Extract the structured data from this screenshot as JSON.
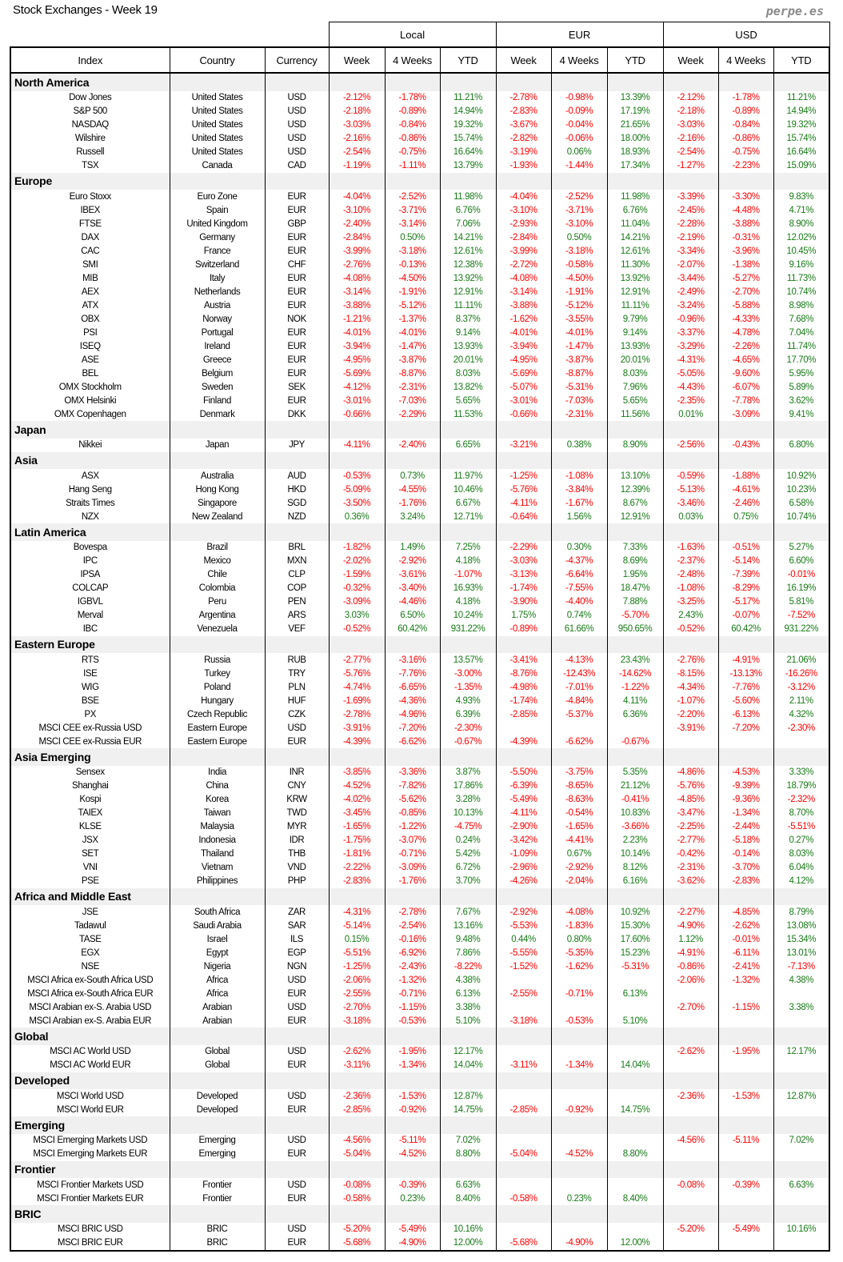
{
  "title": "Stock Exchanges - Week 19",
  "brand": "perpe.es",
  "colors": {
    "negative": "#ff0000",
    "positive": "#1a7a1a",
    "section_bg": "#f0f0f0"
  },
  "groups": [
    "Local",
    "EUR",
    "USD"
  ],
  "columns": [
    "Index",
    "Country",
    "Currency",
    "Week",
    "4 Weeks",
    "YTD",
    "Week",
    "4 Weeks",
    "YTD",
    "Week",
    "4 Weeks",
    "YTD"
  ],
  "sections": [
    {
      "name": "North America",
      "rows": [
        [
          "Dow Jones",
          "United States",
          "USD",
          "-2.12%",
          "-1.78%",
          "11.21%",
          "-2.78%",
          "-0.98%",
          "13.39%",
          "-2.12%",
          "-1.78%",
          "11.21%"
        ],
        [
          "S&P 500",
          "United States",
          "USD",
          "-2.18%",
          "-0.89%",
          "14.94%",
          "-2.83%",
          "-0.09%",
          "17.19%",
          "-2.18%",
          "-0.89%",
          "14.94%"
        ],
        [
          "NASDAQ",
          "United States",
          "USD",
          "-3.03%",
          "-0.84%",
          "19.32%",
          "-3.67%",
          "-0.04%",
          "21.65%",
          "-3.03%",
          "-0.84%",
          "19.32%"
        ],
        [
          "Wilshire",
          "United States",
          "USD",
          "-2.16%",
          "-0.86%",
          "15.74%",
          "-2.82%",
          "-0.06%",
          "18.00%",
          "-2.16%",
          "-0.86%",
          "15.74%"
        ],
        [
          "Russell",
          "United States",
          "USD",
          "-2.54%",
          "-0.75%",
          "16.64%",
          "-3.19%",
          "0.06%",
          "18.93%",
          "-2.54%",
          "-0.75%",
          "16.64%"
        ],
        [
          "TSX",
          "Canada",
          "CAD",
          "-1.19%",
          "-1.11%",
          "13.79%",
          "-1.93%",
          "-1.44%",
          "17.34%",
          "-1.27%",
          "-2.23%",
          "15.09%"
        ]
      ]
    },
    {
      "name": "Europe",
      "rows": [
        [
          "Euro Stoxx",
          "Euro Zone",
          "EUR",
          "-4.04%",
          "-2.52%",
          "11.98%",
          "-4.04%",
          "-2.52%",
          "11.98%",
          "-3.39%",
          "-3.30%",
          "9.83%"
        ],
        [
          "IBEX",
          "Spain",
          "EUR",
          "-3.10%",
          "-3.71%",
          "6.76%",
          "-3.10%",
          "-3.71%",
          "6.76%",
          "-2.45%",
          "-4.48%",
          "4.71%"
        ],
        [
          "FTSE",
          "United Kingdom",
          "GBP",
          "-2.40%",
          "-3.14%",
          "7.06%",
          "-2.93%",
          "-3.10%",
          "11.04%",
          "-2.28%",
          "-3.88%",
          "8.90%"
        ],
        [
          "DAX",
          "Germany",
          "EUR",
          "-2.84%",
          "0.50%",
          "14.21%",
          "-2.84%",
          "0.50%",
          "14.21%",
          "-2.19%",
          "-0.31%",
          "12.02%"
        ],
        [
          "CAC",
          "France",
          "EUR",
          "-3.99%",
          "-3.18%",
          "12.61%",
          "-3.99%",
          "-3.18%",
          "12.61%",
          "-3.34%",
          "-3.96%",
          "10.45%"
        ],
        [
          "SMI",
          "Switzerland",
          "CHF",
          "-2.76%",
          "-0.13%",
          "12.38%",
          "-2.72%",
          "-0.58%",
          "11.30%",
          "-2.07%",
          "-1.38%",
          "9.16%"
        ],
        [
          "MIB",
          "Italy",
          "EUR",
          "-4.08%",
          "-4.50%",
          "13.92%",
          "-4.08%",
          "-4.50%",
          "13.92%",
          "-3.44%",
          "-5.27%",
          "11.73%"
        ],
        [
          "AEX",
          "Netherlands",
          "EUR",
          "-3.14%",
          "-1.91%",
          "12.91%",
          "-3.14%",
          "-1.91%",
          "12.91%",
          "-2.49%",
          "-2.70%",
          "10.74%"
        ],
        [
          "ATX",
          "Austria",
          "EUR",
          "-3.88%",
          "-5.12%",
          "11.11%",
          "-3.88%",
          "-5.12%",
          "11.11%",
          "-3.24%",
          "-5.88%",
          "8.98%"
        ],
        [
          "OBX",
          "Norway",
          "NOK",
          "-1.21%",
          "-1.37%",
          "8.37%",
          "-1.62%",
          "-3.55%",
          "9.79%",
          "-0.96%",
          "-4.33%",
          "7.68%"
        ],
        [
          "PSI",
          "Portugal",
          "EUR",
          "-4.01%",
          "-4.01%",
          "9.14%",
          "-4.01%",
          "-4.01%",
          "9.14%",
          "-3.37%",
          "-4.78%",
          "7.04%"
        ],
        [
          "ISEQ",
          "Ireland",
          "EUR",
          "-3.94%",
          "-1.47%",
          "13.93%",
          "-3.94%",
          "-1.47%",
          "13.93%",
          "-3.29%",
          "-2.26%",
          "11.74%"
        ],
        [
          "ASE",
          "Greece",
          "EUR",
          "-4.95%",
          "-3.87%",
          "20.01%",
          "-4.95%",
          "-3.87%",
          "20.01%",
          "-4.31%",
          "-4.65%",
          "17.70%"
        ],
        [
          "BEL",
          "Belgium",
          "EUR",
          "-5.69%",
          "-8.87%",
          "8.03%",
          "-5.69%",
          "-8.87%",
          "8.03%",
          "-5.05%",
          "-9.60%",
          "5.95%"
        ],
        [
          "OMX Stockholm",
          "Sweden",
          "SEK",
          "-4.12%",
          "-2.31%",
          "13.82%",
          "-5.07%",
          "-5.31%",
          "7.96%",
          "-4.43%",
          "-6.07%",
          "5.89%"
        ],
        [
          "OMX Helsinki",
          "Finland",
          "EUR",
          "-3.01%",
          "-7.03%",
          "5.65%",
          "-3.01%",
          "-7.03%",
          "5.65%",
          "-2.35%",
          "-7.78%",
          "3.62%"
        ],
        [
          "OMX Copenhagen",
          "Denmark",
          "DKK",
          "-0.66%",
          "-2.29%",
          "11.53%",
          "-0.66%",
          "-2.31%",
          "11.56%",
          "0.01%",
          "-3.09%",
          "9.41%"
        ]
      ]
    },
    {
      "name": "Japan",
      "rows": [
        [
          "Nikkei",
          "Japan",
          "JPY",
          "-4.11%",
          "-2.40%",
          "6.65%",
          "-3.21%",
          "0.38%",
          "8.90%",
          "-2.56%",
          "-0.43%",
          "6.80%"
        ]
      ]
    },
    {
      "name": "Asia",
      "rows": [
        [
          "ASX",
          "Australia",
          "AUD",
          "-0.53%",
          "0.73%",
          "11.97%",
          "-1.25%",
          "-1.08%",
          "13.10%",
          "-0.59%",
          "-1.88%",
          "10.92%"
        ],
        [
          "Hang Seng",
          "Hong Kong",
          "HKD",
          "-5.09%",
          "-4.55%",
          "10.46%",
          "-5.76%",
          "-3.84%",
          "12.39%",
          "-5.13%",
          "-4.61%",
          "10.23%"
        ],
        [
          "Straits Times",
          "Singapore",
          "SGD",
          "-3.50%",
          "-1.76%",
          "6.67%",
          "-4.11%",
          "-1.67%",
          "8.67%",
          "-3.46%",
          "-2.46%",
          "6.58%"
        ],
        [
          "NZX",
          "New Zealand",
          "NZD",
          "0.36%",
          "3.24%",
          "12.71%",
          "-0.64%",
          "1.56%",
          "12.91%",
          "0.03%",
          "0.75%",
          "10.74%"
        ]
      ]
    },
    {
      "name": "Latin America",
      "rows": [
        [
          "Bovespa",
          "Brazil",
          "BRL",
          "-1.82%",
          "1.49%",
          "7.25%",
          "-2.29%",
          "0.30%",
          "7.33%",
          "-1.63%",
          "-0.51%",
          "5.27%"
        ],
        [
          "IPC",
          "Mexico",
          "MXN",
          "-2.02%",
          "-2.92%",
          "4.18%",
          "-3.03%",
          "-4.37%",
          "8.69%",
          "-2.37%",
          "-5.14%",
          "6.60%"
        ],
        [
          "IPSA",
          "Chile",
          "CLP",
          "-1.59%",
          "-3.61%",
          "-1.07%",
          "-3.13%",
          "-6.64%",
          "1.95%",
          "-2.48%",
          "-7.39%",
          "-0.01%"
        ],
        [
          "COLCAP",
          "Colombia",
          "COP",
          "-0.32%",
          "-3.40%",
          "16.93%",
          "-1.74%",
          "-7.55%",
          "18.47%",
          "-1.08%",
          "-8.29%",
          "16.19%"
        ],
        [
          "IGBVL",
          "Peru",
          "PEN",
          "-3.09%",
          "-4.46%",
          "4.18%",
          "-3.90%",
          "-4.40%",
          "7.88%",
          "-3.25%",
          "-5.17%",
          "5.81%"
        ],
        [
          "Merval",
          "Argentina",
          "ARS",
          "3.03%",
          "6.50%",
          "10.24%",
          "1.75%",
          "0.74%",
          "-5.70%",
          "2.43%",
          "-0.07%",
          "-7.52%"
        ],
        [
          "IBC",
          "Venezuela",
          "VEF",
          "-0.52%",
          "60.42%",
          "931.22%",
          "-0.89%",
          "61.66%",
          "950.65%",
          "-0.52%",
          "60.42%",
          "931.22%"
        ]
      ]
    },
    {
      "name": "Eastern Europe",
      "rows": [
        [
          "RTS",
          "Russia",
          "RUB",
          "-2.77%",
          "-3.16%",
          "13.57%",
          "-3.41%",
          "-4.13%",
          "23.43%",
          "-2.76%",
          "-4.91%",
          "21.06%"
        ],
        [
          "ISE",
          "Turkey",
          "TRY",
          "-5.76%",
          "-7.76%",
          "-3.00%",
          "-8.76%",
          "-12.43%",
          "-14.62%",
          "-8.15%",
          "-13.13%",
          "-16.26%"
        ],
        [
          "WIG",
          "Poland",
          "PLN",
          "-4.74%",
          "-6.65%",
          "-1.35%",
          "-4.98%",
          "-7.01%",
          "-1.22%",
          "-4.34%",
          "-7.76%",
          "-3.12%"
        ],
        [
          "BSE",
          "Hungary",
          "HUF",
          "-1.69%",
          "-4.36%",
          "4.93%",
          "-1.74%",
          "-4.84%",
          "4.11%",
          "-1.07%",
          "-5.60%",
          "2.11%"
        ],
        [
          "PX",
          "Czech Republic",
          "CZK",
          "-2.78%",
          "-4.96%",
          "6.39%",
          "-2.85%",
          "-5.37%",
          "6.36%",
          "-2.20%",
          "-6.13%",
          "4.32%"
        ],
        [
          "MSCI CEE ex-Russia USD",
          "Eastern Europe",
          "USD",
          "-3.91%",
          "-7.20%",
          "-2.30%",
          "",
          "",
          "",
          "-3.91%",
          "-7.20%",
          "-2.30%"
        ],
        [
          "MSCI CEE ex-Russia EUR",
          "Eastern Europe",
          "EUR",
          "-4.39%",
          "-6.62%",
          "-0.67%",
          "-4.39%",
          "-6.62%",
          "-0.67%",
          "",
          "",
          ""
        ]
      ]
    },
    {
      "name": "Asia Emerging",
      "rows": [
        [
          "Sensex",
          "India",
          "INR",
          "-3.85%",
          "-3.36%",
          "3.87%",
          "-5.50%",
          "-3.75%",
          "5.35%",
          "-4.86%",
          "-4.53%",
          "3.33%"
        ],
        [
          "Shanghai",
          "China",
          "CNY",
          "-4.52%",
          "-7.82%",
          "17.86%",
          "-6.39%",
          "-8.65%",
          "21.12%",
          "-5.76%",
          "-9.39%",
          "18.79%"
        ],
        [
          "Kospi",
          "Korea",
          "KRW",
          "-4.02%",
          "-5.62%",
          "3.28%",
          "-5.49%",
          "-8.63%",
          "-0.41%",
          "-4.85%",
          "-9.36%",
          "-2.32%"
        ],
        [
          "TAIEX",
          "Taiwan",
          "TWD",
          "-3.45%",
          "-0.85%",
          "10.13%",
          "-4.11%",
          "-0.54%",
          "10.83%",
          "-3.47%",
          "-1.34%",
          "8.70%"
        ],
        [
          "KLSE",
          "Malaysia",
          "MYR",
          "-1.65%",
          "-1.22%",
          "-4.75%",
          "-2.90%",
          "-1.65%",
          "-3.66%",
          "-2.25%",
          "-2.44%",
          "-5.51%"
        ],
        [
          "JSX",
          "Indonesia",
          "IDR",
          "-1.75%",
          "-3.07%",
          "0.24%",
          "-3.42%",
          "-4.41%",
          "2.23%",
          "-2.77%",
          "-5.18%",
          "0.27%"
        ],
        [
          "SET",
          "Thailand",
          "THB",
          "-1.81%",
          "-0.71%",
          "5.42%",
          "-1.09%",
          "0.67%",
          "10.14%",
          "-0.42%",
          "-0.14%",
          "8.03%"
        ],
        [
          "VNI",
          "Vietnam",
          "VND",
          "-2.22%",
          "-3.09%",
          "6.72%",
          "-2.96%",
          "-2.92%",
          "8.12%",
          "-2.31%",
          "-3.70%",
          "6.04%"
        ],
        [
          "PSE",
          "Philippines",
          "PHP",
          "-2.83%",
          "-1.76%",
          "3.70%",
          "-4.26%",
          "-2.04%",
          "6.16%",
          "-3.62%",
          "-2.83%",
          "4.12%"
        ]
      ]
    },
    {
      "name": "Africa and Middle East",
      "rows": [
        [
          "JSE",
          "South Africa",
          "ZAR",
          "-4.31%",
          "-2.78%",
          "7.67%",
          "-2.92%",
          "-4.08%",
          "10.92%",
          "-2.27%",
          "-4.85%",
          "8.79%"
        ],
        [
          "Tadawul",
          "Saudi Arabia",
          "SAR",
          "-5.14%",
          "-2.54%",
          "13.16%",
          "-5.53%",
          "-1.83%",
          "15.30%",
          "-4.90%",
          "-2.62%",
          "13.08%"
        ],
        [
          "TASE",
          "Israel",
          "ILS",
          "0.15%",
          "-0.16%",
          "9.48%",
          "0.44%",
          "0.80%",
          "17.60%",
          "1.12%",
          "-0.01%",
          "15.34%"
        ],
        [
          "EGX",
          "Egypt",
          "EGP",
          "-5.51%",
          "-6.92%",
          "7.86%",
          "-5.55%",
          "-5.35%",
          "15.23%",
          "-4.91%",
          "-6.11%",
          "13.01%"
        ],
        [
          "NSE",
          "Nigeria",
          "NGN",
          "-1.25%",
          "-2.43%",
          "-8.22%",
          "-1.52%",
          "-1.62%",
          "-5.31%",
          "-0.86%",
          "-2.41%",
          "-7.13%"
        ],
        [
          "MSCI Africa ex-South Africa USD",
          "Africa",
          "USD",
          "-2.06%",
          "-1.32%",
          "4.38%",
          "",
          "",
          "",
          "-2.06%",
          "-1.32%",
          "4.38%"
        ],
        [
          "MSCI Africa ex-South Africa EUR",
          "Africa",
          "EUR",
          "-2.55%",
          "-0.71%",
          "6.13%",
          "-2.55%",
          "-0.71%",
          "6.13%",
          "",
          "",
          ""
        ],
        [
          "MSCI Arabian ex-S. Arabia USD",
          "Arabian",
          "USD",
          "-2.70%",
          "-1.15%",
          "3.38%",
          "",
          "",
          "",
          "-2.70%",
          "-1.15%",
          "3.38%"
        ],
        [
          "MSCI Arabian ex-S. Arabia EUR",
          "Arabian",
          "EUR",
          "-3.18%",
          "-0.53%",
          "5.10%",
          "-3.18%",
          "-0.53%",
          "5.10%",
          "",
          "",
          ""
        ]
      ]
    },
    {
      "name": "Global",
      "rows": [
        [
          "MSCI AC World USD",
          "Global",
          "USD",
          "-2.62%",
          "-1.95%",
          "12.17%",
          "",
          "",
          "",
          "-2.62%",
          "-1.95%",
          "12.17%"
        ],
        [
          "MSCI AC World EUR",
          "Global",
          "EUR",
          "-3.11%",
          "-1.34%",
          "14.04%",
          "-3.11%",
          "-1.34%",
          "14.04%",
          "",
          "",
          ""
        ]
      ]
    },
    {
      "name": "Developed",
      "rows": [
        [
          "MSCI World USD",
          "Developed",
          "USD",
          "-2.36%",
          "-1.53%",
          "12.87%",
          "",
          "",
          "",
          "-2.36%",
          "-1.53%",
          "12.87%"
        ],
        [
          "MSCI World EUR",
          "Developed",
          "EUR",
          "-2.85%",
          "-0.92%",
          "14.75%",
          "-2.85%",
          "-0.92%",
          "14.75%",
          "",
          "",
          ""
        ]
      ]
    },
    {
      "name": "Emerging",
      "rows": [
        [
          "MSCI Emerging Markets USD",
          "Emerging",
          "USD",
          "-4.56%",
          "-5.11%",
          "7.02%",
          "",
          "",
          "",
          "-4.56%",
          "-5.11%",
          "7.02%"
        ],
        [
          "MSCI Emerging Markets EUR",
          "Emerging",
          "EUR",
          "-5.04%",
          "-4.52%",
          "8.80%",
          "-5.04%",
          "-4.52%",
          "8.80%",
          "",
          "",
          ""
        ]
      ]
    },
    {
      "name": "Frontier",
      "rows": [
        [
          "MSCI Frontier Markets USD",
          "Frontier",
          "USD",
          "-0.08%",
          "-0.39%",
          "6.63%",
          "",
          "",
          "",
          "-0.08%",
          "-0.39%",
          "6.63%"
        ],
        [
          "MSCI Frontier Markets EUR",
          "Frontier",
          "EUR",
          "-0.58%",
          "0.23%",
          "8.40%",
          "-0.58%",
          "0.23%",
          "8.40%",
          "",
          "",
          ""
        ]
      ]
    },
    {
      "name": "BRIC",
      "rows": [
        [
          "MSCI BRIC USD",
          "BRIC",
          "USD",
          "-5.20%",
          "-5.49%",
          "10.16%",
          "",
          "",
          "",
          "-5.20%",
          "-5.49%",
          "10.16%"
        ],
        [
          "MSCI BRIC EUR",
          "BRIC",
          "EUR",
          "-5.68%",
          "-4.90%",
          "12.00%",
          "-5.68%",
          "-4.90%",
          "12.00%",
          "",
          "",
          ""
        ]
      ]
    }
  ]
}
